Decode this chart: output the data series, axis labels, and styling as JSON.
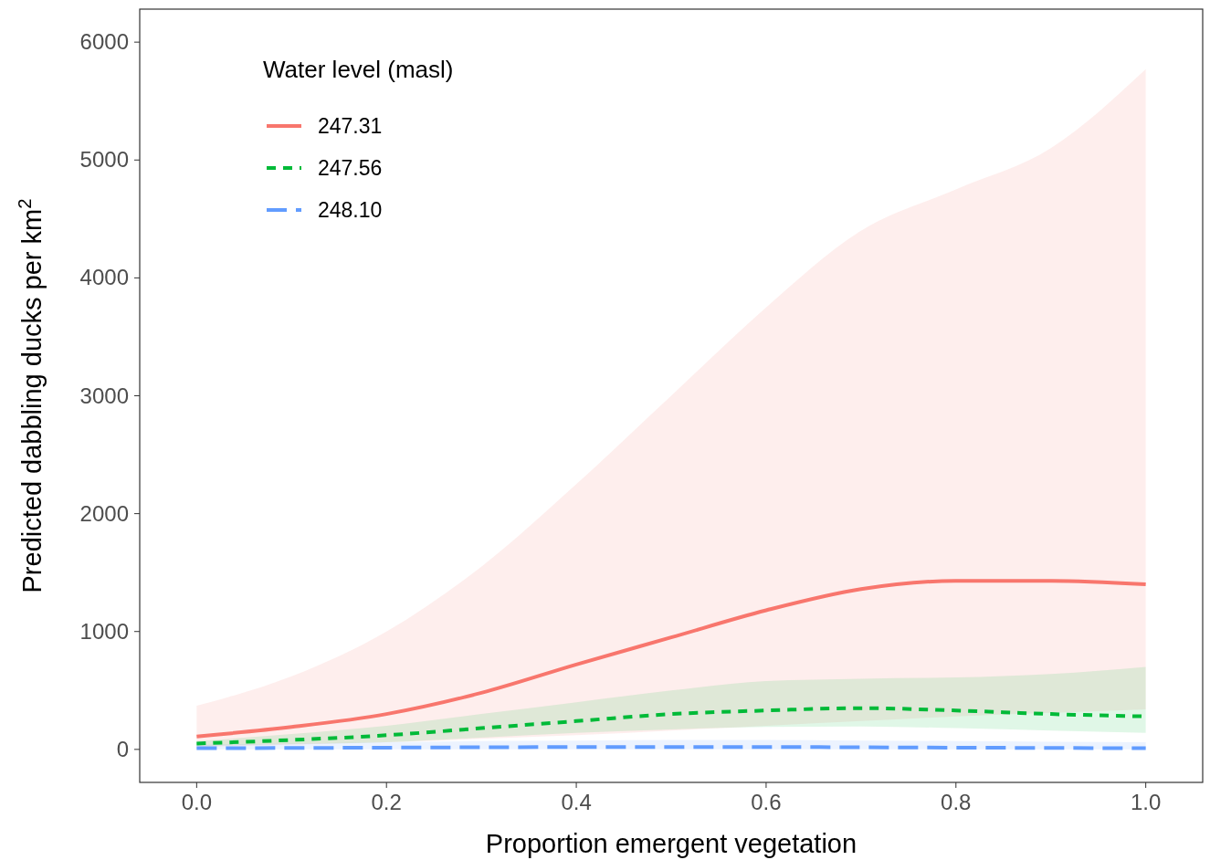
{
  "chart_data": {
    "type": "line",
    "xlabel": "Proportion emergent vegetation",
    "ylabel": "Predicted dabbling ducks per km$^{2}$",
    "legend_title": "Water level (masl)",
    "legend": "top left",
    "grid": false,
    "x": [
      0,
      0.1,
      0.2,
      0.3,
      0.4,
      0.5,
      0.6,
      0.7,
      0.8,
      0.9,
      1.0
    ],
    "xlim": [
      -0.06,
      1.06
    ],
    "xticks": [
      {
        "value": 0,
        "label": "0.0"
      },
      0.2,
      0.4,
      0.6,
      0.8,
      {
        "value": 1,
        "label": "1.0"
      }
    ],
    "ylim": [
      -280,
      6280
    ],
    "yticks": [
      0,
      1000,
      2000,
      3000,
      4000,
      5000,
      6000
    ],
    "series": [
      {
        "name": "247.31",
        "color": "#f8766d",
        "line_style": "solid",
        "values": [
          110,
          190,
          300,
          480,
          720,
          950,
          1180,
          1360,
          1430,
          1430,
          1400
        ],
        "lower": [
          20,
          40,
          60,
          90,
          120,
          160,
          200,
          240,
          280,
          310,
          340
        ],
        "upper": [
          370,
          620,
          1000,
          1550,
          2250,
          3000,
          3750,
          4400,
          4750,
          5100,
          5770
        ]
      },
      {
        "name": "247.56",
        "color": "#00ba38",
        "line_style": "dotted",
        "values": [
          50,
          80,
          120,
          180,
          240,
          300,
          330,
          350,
          330,
          300,
          280
        ],
        "lower": [
          30,
          45,
          60,
          100,
          140,
          170,
          190,
          195,
          180,
          160,
          140
        ],
        "upper": [
          70,
          130,
          200,
          300,
          400,
          500,
          580,
          600,
          610,
          640,
          700
        ]
      },
      {
        "name": "248.10",
        "color": "#619cff",
        "line_style": "dashed",
        "values": [
          10,
          12,
          15,
          18,
          20,
          20,
          20,
          18,
          15,
          12,
          10
        ],
        "lower": [
          0,
          0,
          0,
          0,
          0,
          0,
          0,
          0,
          0,
          0,
          0
        ],
        "upper": [
          40,
          50,
          60,
          70,
          75,
          80,
          80,
          75,
          70,
          65,
          60
        ]
      }
    ]
  }
}
